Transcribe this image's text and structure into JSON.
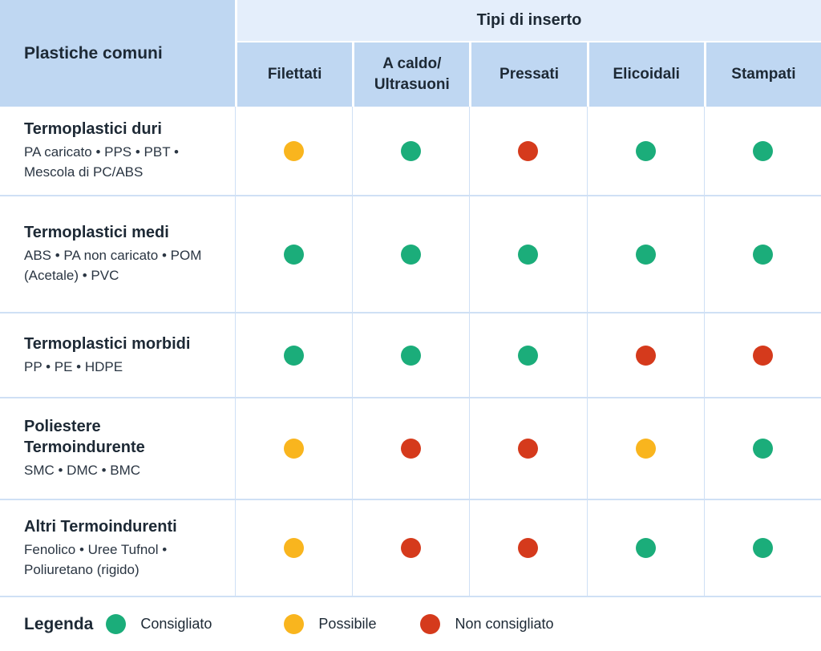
{
  "chart_data": {
    "type": "table",
    "corner_header": "Plastiche comuni",
    "group_header": "Tipi di inserto",
    "columns": [
      "Filettati",
      "A caldo/\nUltrasuoni",
      "Pressati",
      "Elicoidali",
      "Stampati"
    ],
    "rows": [
      {
        "title": "Termoplastici duri",
        "subtitle": "PA caricato • PPS • PBT • Mescola di PC/ABS",
        "values": [
          "possible",
          "recommended",
          "not_recommended",
          "recommended",
          "recommended"
        ]
      },
      {
        "title": "Termoplastici medi",
        "subtitle": "ABS • PA non caricato • POM (Acetale) • PVC",
        "values": [
          "recommended",
          "recommended",
          "recommended",
          "recommended",
          "recommended"
        ]
      },
      {
        "title": "Termoplastici morbidi",
        "subtitle": "PP • PE • HDPE",
        "values": [
          "recommended",
          "recommended",
          "recommended",
          "not_recommended",
          "not_recommended"
        ]
      },
      {
        "title": "Poliestere Termoindurente",
        "subtitle": "SMC • DMC • BMC",
        "values": [
          "possible",
          "not_recommended",
          "not_recommended",
          "possible",
          "recommended"
        ]
      },
      {
        "title": "Altri Termoindurenti",
        "subtitle": "Fenolico • Uree Tufnol • Poliuretano (rigido)",
        "values": [
          "possible",
          "not_recommended",
          "not_recommended",
          "recommended",
          "recommended"
        ]
      }
    ],
    "legend": {
      "title": "Legenda",
      "items": [
        {
          "label": "Consigliato",
          "status": "recommended"
        },
        {
          "label": "Possibile",
          "status": "possible"
        },
        {
          "label": "Non consigliato",
          "status": "not_recommended"
        }
      ]
    }
  },
  "colors": {
    "recommended": "#1BAD7A",
    "possible": "#F9B51E",
    "not_recommended": "#D53A1C",
    "header_cell": "#BFD7F2",
    "group_band": "#E4EEFB",
    "gridline": "#CFE0F5"
  }
}
